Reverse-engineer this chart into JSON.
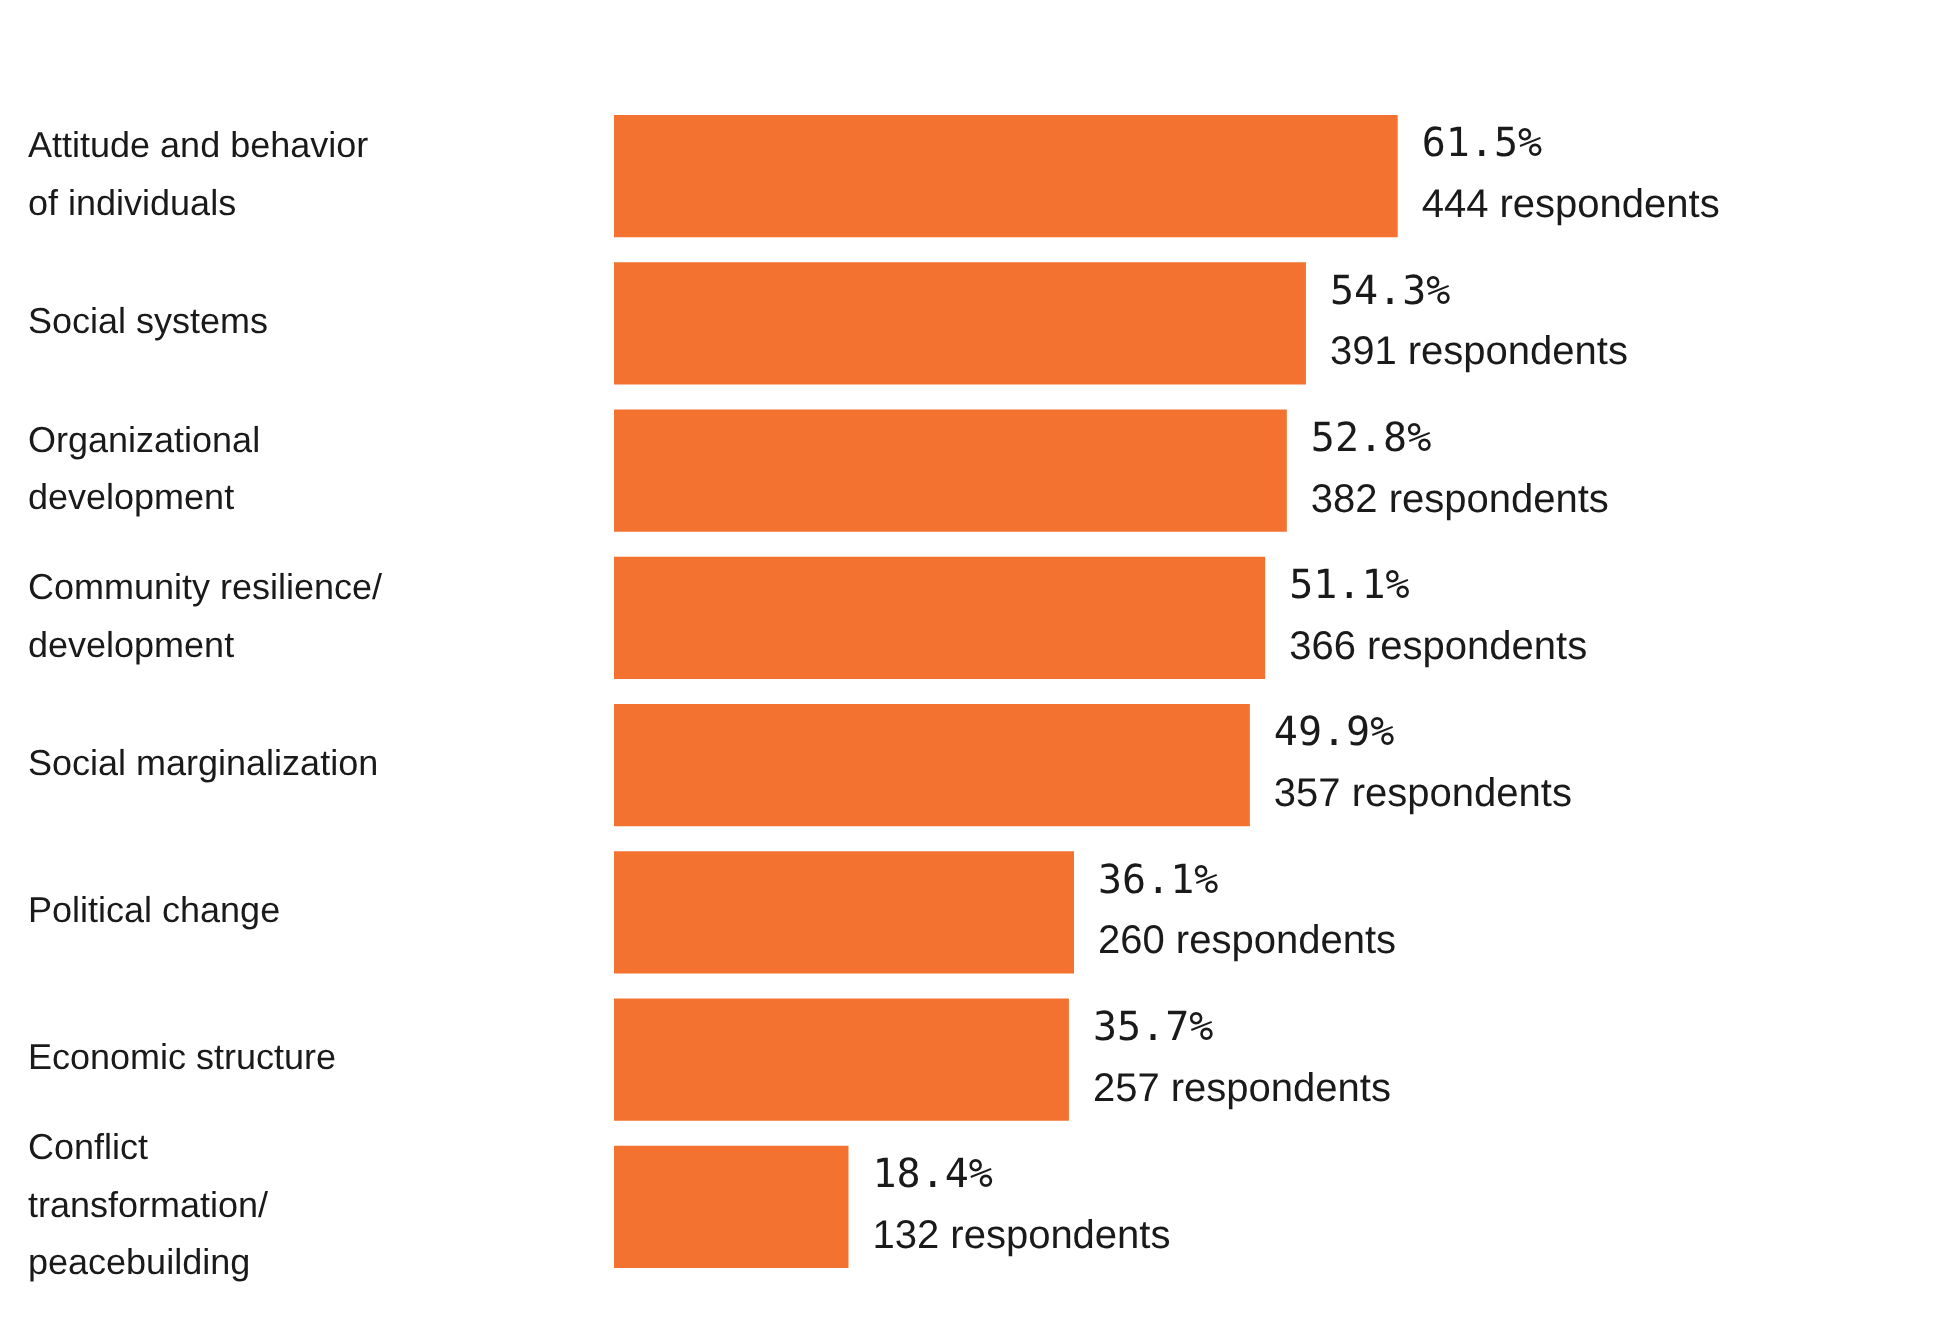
{
  "chart_data": {
    "type": "bar",
    "orientation": "horizontal",
    "categories": [
      "Attitude and behavior of individuals",
      "Social systems",
      "Organizational development",
      "Community resilience/development",
      "Social marginalization",
      "Political change",
      "Economic structure",
      "Conflict transformation/peacebuilding"
    ],
    "values": [
      61.5,
      54.3,
      52.8,
      51.1,
      49.9,
      36.1,
      35.7,
      18.4
    ],
    "value_labels": [
      "61.5%\n444 respondents",
      "54.3%\n391 respondents",
      "52.8%\n382 respondents",
      "51.1%\n366 respondents",
      "49.9%\n357 respondents",
      "36.1%\n260 respondents",
      "35.7%\n257 respondents",
      "18.4%\n132 respondents"
    ],
    "color": "#f37230",
    "tick_labels": "y",
    "legend": false
  }
}
